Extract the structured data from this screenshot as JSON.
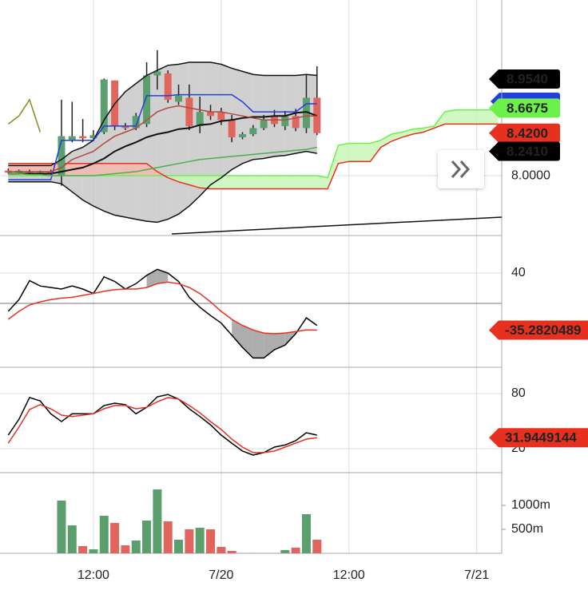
{
  "chart_data": {
    "type": "candlestick",
    "xlim": [
      -0.775,
      46.35
    ],
    "xticks": [
      {
        "value": 8,
        "label": "12:00"
      },
      {
        "value": 20,
        "label": "7/20"
      },
      {
        "value": 32,
        "label": "12:00"
      },
      {
        "value": 44,
        "label": "7/21"
      }
    ],
    "panels": [
      {
        "type": "candlestick",
        "ylim": [
          7.409,
          9.735
        ],
        "yticks": [
          {
            "value": 8,
            "label": "8.0000"
          }
        ],
        "up_color": "#5c9f6e",
        "down_color": "#e0665d",
        "open": [
          8.05,
          8.03,
          8.04,
          8.03,
          8.04,
          8.0,
          8.35,
          8.39,
          8.37,
          8.43,
          8.94,
          8.49,
          8.47,
          8.51,
          8.99,
          9.01,
          8.73,
          8.77,
          8.49,
          8.63,
          8.63,
          8.55,
          8.38,
          8.41,
          8.47,
          8.59,
          8.49,
          8.59,
          8.47,
          8.77
        ],
        "high": [
          8.07,
          8.06,
          8.06,
          8.05,
          8.06,
          8.75,
          8.73,
          8.56,
          8.45,
          8.96,
          8.94,
          8.52,
          8.62,
          9.12,
          9.24,
          9.04,
          8.9,
          8.9,
          8.78,
          8.7,
          8.67,
          8.6,
          8.43,
          8.5,
          8.6,
          8.65,
          8.64,
          8.66,
          9.0,
          9.08
        ],
        "low": [
          8.02,
          8.02,
          8.02,
          8.02,
          8.01,
          7.9,
          8.33,
          8.33,
          8.34,
          8.41,
          8.45,
          8.45,
          8.45,
          8.48,
          8.85,
          8.72,
          8.7,
          8.45,
          8.42,
          8.55,
          8.5,
          8.33,
          8.36,
          8.39,
          8.45,
          8.48,
          8.45,
          8.44,
          8.42,
          8.4
        ],
        "close": [
          8.03,
          8.05,
          8.03,
          8.04,
          8.02,
          8.39,
          8.39,
          8.37,
          8.4,
          8.95,
          8.49,
          8.47,
          8.59,
          8.99,
          9.03,
          8.75,
          8.79,
          8.49,
          8.63,
          8.59,
          8.55,
          8.38,
          8.41,
          8.47,
          8.55,
          8.51,
          8.59,
          8.47,
          8.77,
          8.42
        ],
        "bands": {
          "fill": "#c4c4c4",
          "color": "#111111",
          "upper": [
            8.1,
            8.1,
            8.1,
            8.1,
            8.1,
            8.16,
            8.24,
            8.28,
            8.35,
            8.55,
            8.71,
            8.83,
            8.91,
            8.99,
            9.04,
            9.09,
            9.1,
            9.12,
            9.12,
            9.12,
            9.1,
            9.06,
            9.03,
            9.0,
            8.99,
            8.99,
            8.99,
            8.99,
            9.0,
            8.99
          ],
          "lower": [
            7.94,
            7.94,
            7.94,
            7.94,
            7.94,
            7.92,
            7.84,
            7.76,
            7.7,
            7.65,
            7.61,
            7.59,
            7.57,
            7.55,
            7.54,
            7.57,
            7.62,
            7.7,
            7.8,
            7.91,
            7.98,
            8.06,
            8.12,
            8.16,
            8.17,
            8.19,
            8.2,
            8.22,
            8.24,
            8.22
          ]
        },
        "cloud": {
          "up_fill": "#c9f7b8",
          "down_fill": "#f4b7b0",
          "lead_a": {
            "color": "#6cf04a",
            "values": [
              8.0,
              8.0,
              8.0,
              8.0,
              8.0,
              8.0,
              8.0,
              8.0,
              8.0,
              8.0,
              8.0,
              8.0,
              8.0,
              8.0,
              8.0,
              8.0,
              8.0,
              8.0,
              8.0,
              8.0,
              8.0,
              8.0,
              8.0,
              8.0,
              8.0,
              8.0,
              8.0,
              8.0,
              8.0,
              8.0,
              7.98,
              8.3,
              8.32,
              8.32,
              8.32,
              8.35,
              8.41,
              8.43,
              8.46,
              8.47,
              8.49,
              8.63,
              8.65,
              8.65,
              8.65,
              8.65,
              8.65
            ]
          },
          "lead_b": {
            "color": "#e8301f",
            "values": [
              8.12,
              8.12,
              8.12,
              8.12,
              8.12,
              8.12,
              8.12,
              8.12,
              8.12,
              8.12,
              8.12,
              8.12,
              8.12,
              8.12,
              8.04,
              7.98,
              7.94,
              7.91,
              7.88,
              7.87,
              7.87,
              7.87,
              7.87,
              7.87,
              7.87,
              7.87,
              7.87,
              7.87,
              7.87,
              7.87,
              7.87,
              8.12,
              8.14,
              8.14,
              8.14,
              8.28,
              8.34,
              8.38,
              8.41,
              8.43,
              8.47,
              8.51,
              8.51,
              8.51,
              8.51,
              8.51,
              8.51
            ]
          }
        },
        "series": [
          {
            "color": "#111111",
            "values": [
              8.02,
              8.02,
              8.02,
              8.02,
              8.02,
              8.04,
              8.06,
              8.08,
              8.12,
              8.17,
              8.24,
              8.29,
              8.33,
              8.38,
              8.41,
              8.43,
              8.46,
              8.47,
              8.5,
              8.51,
              8.54,
              8.55,
              8.57,
              8.58,
              8.58,
              8.59,
              8.59,
              8.62,
              8.63,
              8.59
            ]
          },
          {
            "color": "#1f3fe0",
            "values": [
              7.96,
              7.96,
              7.96,
              7.96,
              7.96,
              8.35,
              8.35,
              8.35,
              8.35,
              8.49,
              8.49,
              8.49,
              8.49,
              8.79,
              8.79,
              8.79,
              8.8,
              8.8,
              8.8,
              8.8,
              8.8,
              8.8,
              8.73,
              8.63,
              8.63,
              8.63,
              8.63,
              8.63,
              8.71,
              8.71
            ]
          },
          {
            "color": "#b24a3c",
            "values": [
              8.04,
              8.04,
              8.04,
              8.04,
              8.04,
              8.08,
              8.16,
              8.2,
              8.24,
              8.32,
              8.39,
              8.43,
              8.47,
              8.55,
              8.63,
              8.67,
              8.69,
              8.67,
              8.65,
              8.63,
              8.63,
              8.61,
              8.59,
              8.57,
              8.55,
              8.55,
              8.55,
              8.57,
              8.59,
              8.59
            ]
          },
          {
            "color": "#4caf50",
            "values": [
              8.02,
              8.02,
              8.01,
              8.01,
              8.0,
              8.0,
              8.0,
              8.0,
              8.0,
              8.01,
              8.02,
              8.03,
              8.04,
              8.06,
              8.08,
              8.1,
              8.12,
              8.14,
              8.16,
              8.17,
              8.18,
              8.19,
              8.2,
              8.21,
              8.22,
              8.23,
              8.24,
              8.25,
              8.26,
              8.28
            ]
          },
          {
            "color": "#8a8a1e",
            "values": [
              8.51,
              8.59,
              8.75,
              8.43
            ]
          }
        ],
        "price_tags": [
          {
            "value": 8.954,
            "label": "8.9540",
            "color": "#000000",
            "text_color": "#ffffff"
          },
          {
            "value": 8.6675,
            "label": "8.6675",
            "color": "#6cf04a",
            "text_color": "#000000"
          },
          {
            "value": 8.42,
            "label": "8.4200",
            "color": "#e8301f",
            "text_color": "#ffffff"
          },
          {
            "value": 8.241,
            "label": "8.2410",
            "color": "#000000",
            "text_color": "#ffffff"
          }
        ]
      },
      {
        "type": "line",
        "ylim": [
          -84.2,
          89.5
        ],
        "yticks": [
          40
        ],
        "fill": "#999999",
        "series": [
          {
            "color": "#000000",
            "values": [
              -10.5,
              5,
              30,
              23,
              21,
              19,
              23,
              19,
              13,
              35,
              29,
              19,
              26,
              37,
              45,
              40,
              29,
              8,
              -5,
              -16,
              -26,
              -42,
              -58,
              -72,
              -72,
              -61,
              -55,
              -40,
              -19,
              -29
            ]
          },
          {
            "color": "#e8301f",
            "values": [
              -21,
              -10.5,
              -2,
              2,
              5,
              7,
              8,
              10.5,
              13,
              16,
              18,
              19,
              19,
              21,
              26,
              28,
              26,
              21,
              13,
              2,
              -10.5,
              -21,
              -29,
              -35,
              -39,
              -40,
              -39,
              -37,
              -35,
              -35.2820489
            ]
          }
        ]
      },
      {
        "type": "line",
        "ylim": [
          -6.1,
          108.7
        ],
        "yticks": [
          80,
          20
        ],
        "series": [
          {
            "color": "#000000",
            "values": [
              34.8,
              52,
              75.7,
              72,
              58,
              49.6,
              58,
              58,
              58,
              67,
              69.6,
              68,
              58,
              65,
              76.5,
              79,
              74,
              63.5,
              55,
              46,
              34.8,
              26,
              17.4,
              13,
              15.7,
              21.7,
              24,
              28.7,
              37.4,
              34.8
            ]
          },
          {
            "color": "#e8301f",
            "values": [
              26,
              43.5,
              62.6,
              68,
              63.5,
              56.5,
              55,
              56.5,
              58,
              63.5,
              67,
              67,
              63.5,
              65,
              71,
              75.7,
              74,
              67,
              59,
              49.6,
              40.9,
              30.4,
              21.7,
              15.7,
              15.7,
              17.4,
              21.7,
              26,
              30.4,
              31.9449144
            ]
          }
        ]
      },
      {
        "type": "bar",
        "ylim": [
          0,
          1683
        ],
        "yticks": [
          {
            "value": 1000,
            "label": "1000m"
          },
          {
            "value": 500,
            "label": "500m"
          }
        ],
        "values": [
          null,
          null,
          null,
          null,
          null,
          1100,
          583,
          150,
          83,
          783,
          633,
          167,
          267,
          683,
          1333,
          667,
          283,
          500,
          533,
          500,
          133,
          50,
          5,
          5,
          5,
          5,
          67,
          117,
          817,
          283
        ]
      }
    ]
  }
}
